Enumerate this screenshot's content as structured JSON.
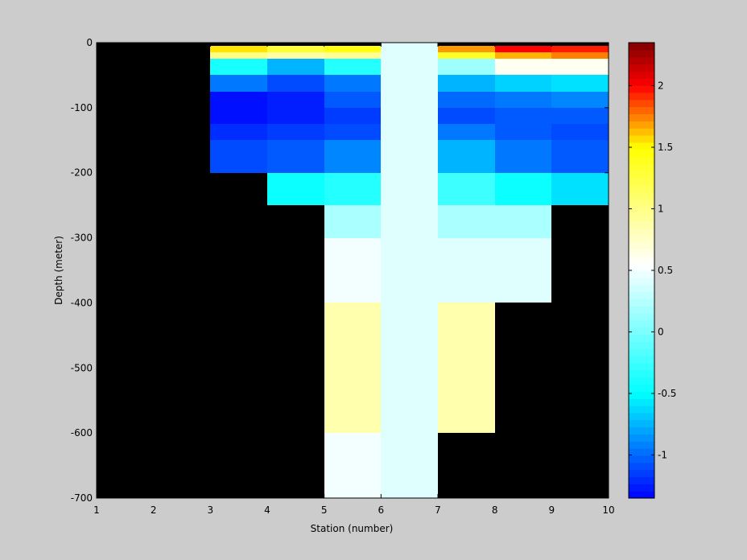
{
  "chart_data": {
    "type": "heatmap",
    "title": "",
    "xlabel": "Station (number)",
    "ylabel": "Depth (meter)",
    "xlim": [
      1,
      10
    ],
    "ylim": [
      -700,
      0
    ],
    "x_ticks": [
      1,
      2,
      3,
      4,
      5,
      6,
      7,
      8,
      9,
      10
    ],
    "y_ticks": [
      0,
      -100,
      -200,
      -300,
      -400,
      -500,
      -600,
      -700
    ],
    "colorbar": {
      "ticks": [
        -1,
        -0.5,
        0,
        0.5,
        1,
        1.5,
        2
      ],
      "range": [
        -1.35,
        2.35
      ]
    },
    "background_color": "#000000",
    "colormap": [
      "#0000ff",
      "#00ffff",
      "#ffffff",
      "#ffff00",
      "#ff0000",
      "#800000"
    ],
    "cells": [
      {
        "x": [
          3,
          4
        ],
        "y": [
          -5,
          -15
        ],
        "value": 1.55
      },
      {
        "x": [
          3,
          4
        ],
        "y": [
          -15,
          -25
        ],
        "value": 1.0
      },
      {
        "x": [
          3,
          4
        ],
        "y": [
          -25,
          -50
        ],
        "value": -0.4
      },
      {
        "x": [
          3,
          4
        ],
        "y": [
          -50,
          -75
        ],
        "value": -0.95
      },
      {
        "x": [
          3,
          4
        ],
        "y": [
          -75,
          -125
        ],
        "value": -1.3
      },
      {
        "x": [
          3,
          4
        ],
        "y": [
          -125,
          -150
        ],
        "value": -1.2
      },
      {
        "x": [
          3,
          4
        ],
        "y": [
          -150,
          -200
        ],
        "value": -1.1
      },
      {
        "x": [
          4,
          5
        ],
        "y": [
          -5,
          -15
        ],
        "value": 1.3
      },
      {
        "x": [
          4,
          5
        ],
        "y": [
          -15,
          -25
        ],
        "value": 0.9
      },
      {
        "x": [
          4,
          5
        ],
        "y": [
          -25,
          -50
        ],
        "value": -0.75
      },
      {
        "x": [
          4,
          5
        ],
        "y": [
          -50,
          -75
        ],
        "value": -1.1
      },
      {
        "x": [
          4,
          5
        ],
        "y": [
          -75,
          -125
        ],
        "value": -1.25
      },
      {
        "x": [
          4,
          5
        ],
        "y": [
          -125,
          -150
        ],
        "value": -1.15
      },
      {
        "x": [
          4,
          5
        ],
        "y": [
          -150,
          -200
        ],
        "value": -1.05
      },
      {
        "x": [
          4,
          5
        ],
        "y": [
          -200,
          -250
        ],
        "value": -0.45
      },
      {
        "x": [
          5,
          6
        ],
        "y": [
          -5,
          -15
        ],
        "value": 1.45
      },
      {
        "x": [
          5,
          6
        ],
        "y": [
          -15,
          -25
        ],
        "value": 0.95
      },
      {
        "x": [
          5,
          6
        ],
        "y": [
          -25,
          -50
        ],
        "value": -0.35
      },
      {
        "x": [
          5,
          6
        ],
        "y": [
          -50,
          -75
        ],
        "value": -0.95
      },
      {
        "x": [
          5,
          6
        ],
        "y": [
          -75,
          -100
        ],
        "value": -1.05
      },
      {
        "x": [
          5,
          6
        ],
        "y": [
          -100,
          -125
        ],
        "value": -1.15
      },
      {
        "x": [
          5,
          6
        ],
        "y": [
          -125,
          -150
        ],
        "value": -1.1
      },
      {
        "x": [
          5,
          6
        ],
        "y": [
          -150,
          -200
        ],
        "value": -0.9
      },
      {
        "x": [
          5,
          6
        ],
        "y": [
          -200,
          -250
        ],
        "value": -0.35
      },
      {
        "x": [
          5,
          6
        ],
        "y": [
          -250,
          -300
        ],
        "value": 0.2
      },
      {
        "x": [
          5,
          6
        ],
        "y": [
          -300,
          -400
        ],
        "value": 0.5
      },
      {
        "x": [
          5,
          6
        ],
        "y": [
          -400,
          -600
        ],
        "value": 0.85
      },
      {
        "x": [
          5,
          6
        ],
        "y": [
          -600,
          -700
        ],
        "value": 0.5
      },
      {
        "x": [
          6,
          7
        ],
        "y": [
          0,
          -700
        ],
        "value": 0.42
      },
      {
        "x": [
          7,
          8
        ],
        "y": [
          -5,
          -15
        ],
        "value": 1.7
      },
      {
        "x": [
          7,
          8
        ],
        "y": [
          -15,
          -25
        ],
        "value": 1.35
      },
      {
        "x": [
          7,
          8
        ],
        "y": [
          -25,
          -50
        ],
        "value": 0.15
      },
      {
        "x": [
          7,
          8
        ],
        "y": [
          -50,
          -75
        ],
        "value": -0.75
      },
      {
        "x": [
          7,
          8
        ],
        "y": [
          -75,
          -100
        ],
        "value": -1.0
      },
      {
        "x": [
          7,
          8
        ],
        "y": [
          -100,
          -125
        ],
        "value": -1.1
      },
      {
        "x": [
          7,
          8
        ],
        "y": [
          -125,
          -150
        ],
        "value": -0.95
      },
      {
        "x": [
          7,
          8
        ],
        "y": [
          -150,
          -200
        ],
        "value": -0.75
      },
      {
        "x": [
          7,
          8
        ],
        "y": [
          -200,
          -250
        ],
        "value": -0.25
      },
      {
        "x": [
          7,
          8
        ],
        "y": [
          -250,
          -300
        ],
        "value": 0.2
      },
      {
        "x": [
          7,
          8
        ],
        "y": [
          -300,
          -400
        ],
        "value": 0.42
      },
      {
        "x": [
          7,
          8
        ],
        "y": [
          -400,
          -600
        ],
        "value": 0.85
      },
      {
        "x": [
          8,
          9
        ],
        "y": [
          -5,
          -15
        ],
        "value": 2.0
      },
      {
        "x": [
          8,
          9
        ],
        "y": [
          -15,
          -25
        ],
        "value": 1.65
      },
      {
        "x": [
          8,
          9
        ],
        "y": [
          -25,
          -50
        ],
        "value": 0.6
      },
      {
        "x": [
          8,
          9
        ],
        "y": [
          -50,
          -75
        ],
        "value": -0.65
      },
      {
        "x": [
          8,
          9
        ],
        "y": [
          -75,
          -100
        ],
        "value": -0.95
      },
      {
        "x": [
          8,
          9
        ],
        "y": [
          -100,
          -125
        ],
        "value": -1.05
      },
      {
        "x": [
          8,
          9
        ],
        "y": [
          -125,
          -150
        ],
        "value": -1.05
      },
      {
        "x": [
          8,
          9
        ],
        "y": [
          -150,
          -200
        ],
        "value": -0.95
      },
      {
        "x": [
          8,
          9
        ],
        "y": [
          -200,
          -250
        ],
        "value": -0.45
      },
      {
        "x": [
          8,
          9
        ],
        "y": [
          -250,
          -300
        ],
        "value": 0.2
      },
      {
        "x": [
          8,
          9
        ],
        "y": [
          -300,
          -400
        ],
        "value": 0.42
      },
      {
        "x": [
          9,
          10
        ],
        "y": [
          -5,
          -15
        ],
        "value": 1.95
      },
      {
        "x": [
          9,
          10
        ],
        "y": [
          -15,
          -25
        ],
        "value": 1.75
      },
      {
        "x": [
          9,
          10
        ],
        "y": [
          -25,
          -50
        ],
        "value": 0.6
      },
      {
        "x": [
          9,
          10
        ],
        "y": [
          -50,
          -75
        ],
        "value": -0.6
      },
      {
        "x": [
          9,
          10
        ],
        "y": [
          -75,
          -100
        ],
        "value": -0.9
      },
      {
        "x": [
          9,
          10
        ],
        "y": [
          -100,
          -125
        ],
        "value": -1.05
      },
      {
        "x": [
          9,
          10
        ],
        "y": [
          -125,
          -150
        ],
        "value": -1.1
      },
      {
        "x": [
          9,
          10
        ],
        "y": [
          -150,
          -200
        ],
        "value": -1.05
      },
      {
        "x": [
          9,
          10
        ],
        "y": [
          -200,
          -250
        ],
        "value": -0.6
      }
    ]
  }
}
